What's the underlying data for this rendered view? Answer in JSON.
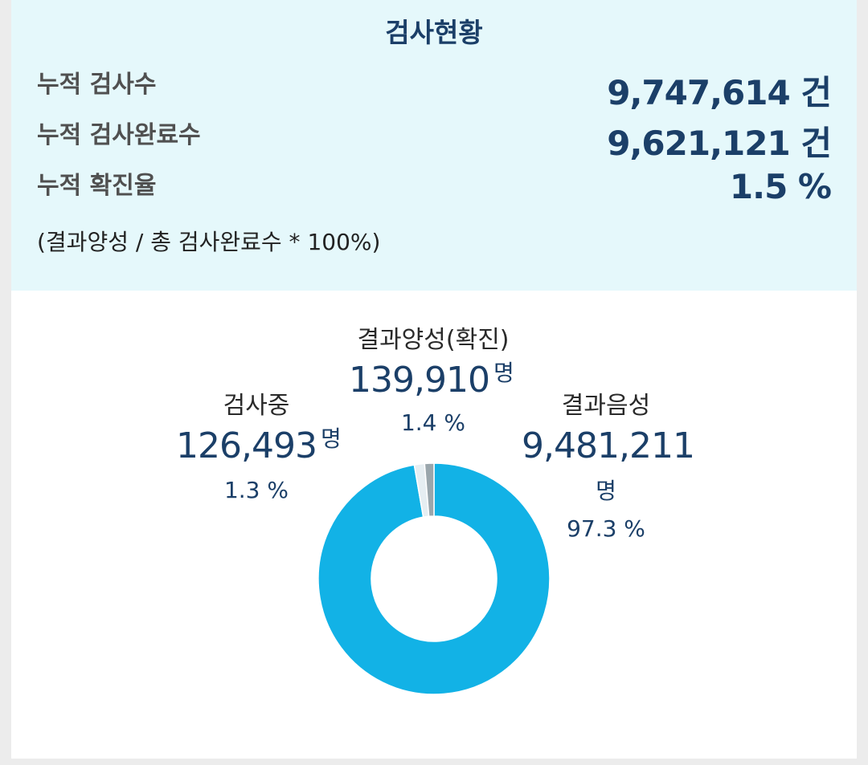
{
  "summary": {
    "title": "검사현황",
    "rows": [
      {
        "label": "누적 검사수",
        "value": "9,747,614 건"
      },
      {
        "label": "누적 검사완료수",
        "value": "9,621,121 건"
      },
      {
        "label": "누적 확진율",
        "value": "1.5 %"
      }
    ],
    "formula": "(결과양성 / 총 검사완료수 * 100%)"
  },
  "chart_data": {
    "type": "pie",
    "style": "donut",
    "categories": [
      "결과음성",
      "결과양성(확진)",
      "검사중"
    ],
    "values": [
      9481211,
      139910,
      126493
    ],
    "percent_labels": [
      "97.3 %",
      "1.4 %",
      "1.3 %"
    ],
    "unit": "명",
    "colors": [
      "#12b2e6",
      "#e6eef2",
      "#9aa6ac"
    ]
  }
}
